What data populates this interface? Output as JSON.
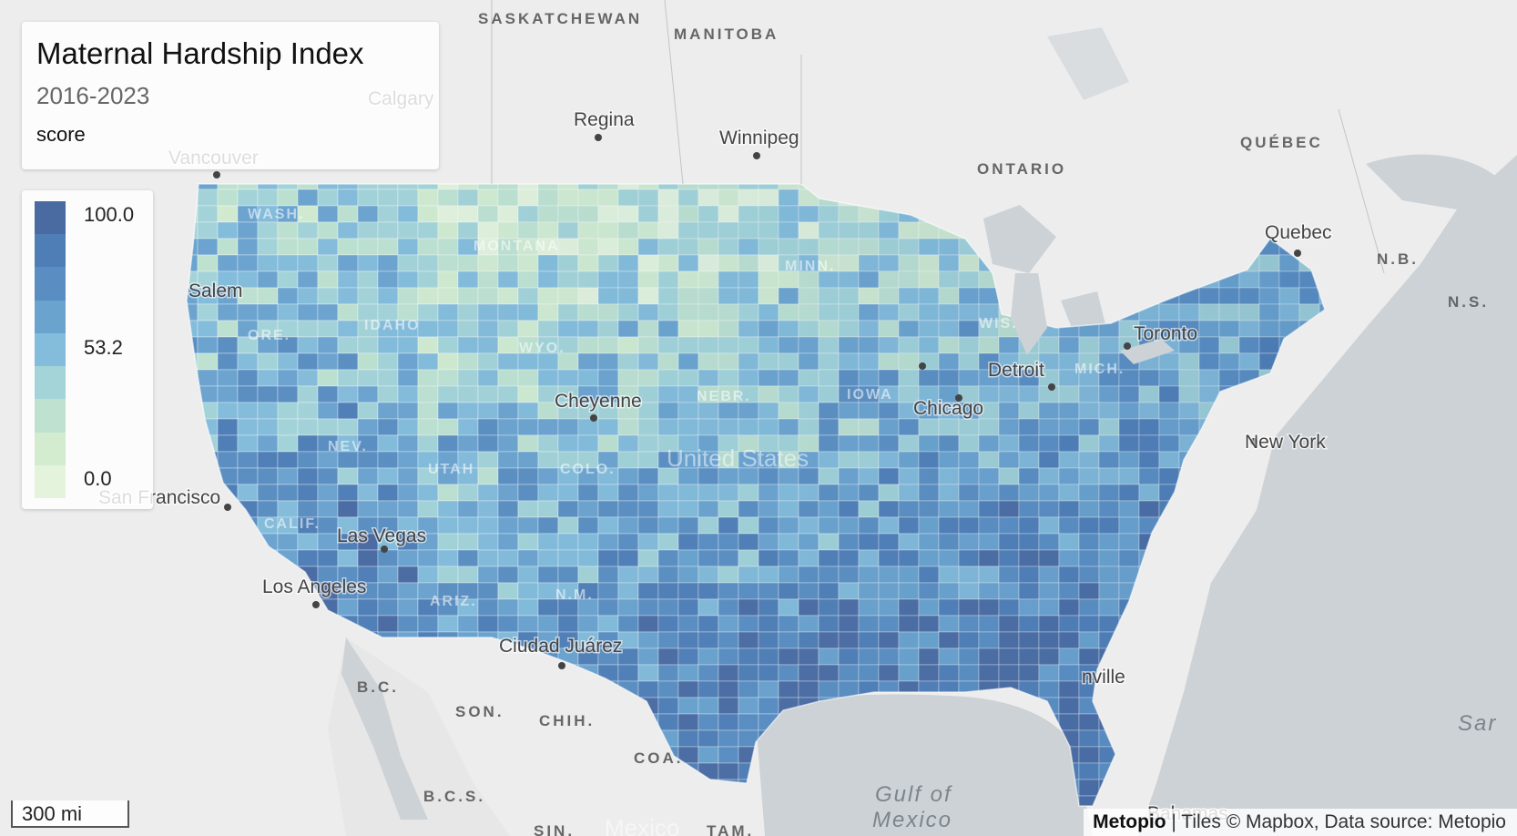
{
  "map": {
    "title": "Maternal Hardship Index",
    "period": "2016-2023",
    "metric": "score",
    "legend": {
      "max_label": "100.0",
      "mid_label": "53.2",
      "min_label": "0.0",
      "color_ramp": [
        "#4a6aa2",
        "#4f7db6",
        "#5a8ec2",
        "#6ba3cf",
        "#84bcdb",
        "#a4d4d8",
        "#bfe2d0",
        "#d3ecd0",
        "#e4f3dc"
      ]
    },
    "scale_bar": "300 mi",
    "attribution": {
      "brand": "Metopio",
      "text": " | Tiles © Mapbox, Data source: Metopio"
    },
    "base_labels": [
      {
        "name": "label-saskatchewan",
        "text": "SASKATCHEWAN",
        "style": "region"
      },
      {
        "name": "label-manitoba",
        "text": "MANITOBA",
        "style": "region"
      },
      {
        "name": "label-ontario",
        "text": "ONTARIO",
        "style": "region"
      },
      {
        "name": "label-quebec-province",
        "text": "QUÉBEC",
        "style": "region"
      },
      {
        "name": "label-nb",
        "text": "N.B.",
        "style": "region"
      },
      {
        "name": "label-ns",
        "text": "N.S.",
        "style": "region"
      },
      {
        "name": "label-montana",
        "text": "MONTANA",
        "style": "state"
      },
      {
        "name": "label-minn",
        "text": "MINN.",
        "style": "state"
      },
      {
        "name": "label-wyo",
        "text": "WYO.",
        "style": "state"
      },
      {
        "name": "label-idaho",
        "text": "IDAHO",
        "style": "state"
      },
      {
        "name": "label-ore",
        "text": "ORE.",
        "style": "state"
      },
      {
        "name": "label-wash",
        "text": "WASH.",
        "style": "state"
      },
      {
        "name": "label-nev",
        "text": "NEV.",
        "style": "state"
      },
      {
        "name": "label-utah",
        "text": "UTAH",
        "style": "state"
      },
      {
        "name": "label-colo",
        "text": "COLO.",
        "style": "state"
      },
      {
        "name": "label-nebr",
        "text": "NEBR.",
        "style": "state"
      },
      {
        "name": "label-iowa",
        "text": "IOWA",
        "style": "state"
      },
      {
        "name": "label-wis",
        "text": "WIS.",
        "style": "state"
      },
      {
        "name": "label-mich",
        "text": "MICH.",
        "style": "state"
      },
      {
        "name": "label-ariz",
        "text": "ARIZ.",
        "style": "state"
      },
      {
        "name": "label-nm",
        "text": "N.M.",
        "style": "state"
      },
      {
        "name": "label-calif",
        "text": "CALIF.",
        "style": "state"
      },
      {
        "name": "label-bc-mexico",
        "text": "B.C.",
        "style": "region"
      },
      {
        "name": "label-son",
        "text": "SON.",
        "style": "region"
      },
      {
        "name": "label-chih",
        "text": "CHIH.",
        "style": "region"
      },
      {
        "name": "label-coa",
        "text": "COA.",
        "style": "region"
      },
      {
        "name": "label-bcs",
        "text": "B.C.S.",
        "style": "region"
      },
      {
        "name": "label-sin",
        "text": "SIN.",
        "style": "region"
      },
      {
        "name": "label-tam",
        "text": "TAM.",
        "style": "region"
      },
      {
        "name": "label-mexico",
        "text": "Mexico",
        "style": "country"
      },
      {
        "name": "label-united-states",
        "text": "United States",
        "style": "country"
      },
      {
        "name": "label-gulf-of",
        "text": "Gulf of",
        "style": "water"
      },
      {
        "name": "label-mexico-water",
        "text": "Mexico",
        "style": "water"
      },
      {
        "name": "label-sargasso",
        "text": "Sar",
        "style": "water"
      },
      {
        "name": "label-regina",
        "text": "Regina",
        "style": "city"
      },
      {
        "name": "label-winnipeg",
        "text": "Winnipeg",
        "style": "city"
      },
      {
        "name": "label-calgary",
        "text": "Calgary",
        "style": "city"
      },
      {
        "name": "label-vancouver",
        "text": "Vancouver",
        "style": "city"
      },
      {
        "name": "label-quebec-city",
        "text": "Quebec",
        "style": "city"
      },
      {
        "name": "label-toronto",
        "text": "Toronto",
        "style": "city"
      },
      {
        "name": "label-new-york",
        "text": "New York",
        "style": "city"
      },
      {
        "name": "label-chicago",
        "text": "Chicago",
        "style": "city"
      },
      {
        "name": "label-detroit",
        "text": "Detroit",
        "style": "city"
      },
      {
        "name": "label-cheyenne",
        "text": "Cheyenne",
        "style": "city"
      },
      {
        "name": "label-san-francisco",
        "text": "San Francisco",
        "style": "city"
      },
      {
        "name": "label-las-vegas",
        "text": "Las Vegas",
        "style": "city"
      },
      {
        "name": "label-los-angeles",
        "text": "Los Angeles",
        "style": "city"
      },
      {
        "name": "label-ciudad-juarez",
        "text": "Ciudad Juárez",
        "style": "city"
      },
      {
        "name": "label-jacksonville",
        "text": "nville",
        "style": "city"
      },
      {
        "name": "label-bahamas",
        "text": "Bahamas",
        "style": "city"
      },
      {
        "name": "label-salem",
        "text": "Salem",
        "style": "city"
      }
    ]
  }
}
